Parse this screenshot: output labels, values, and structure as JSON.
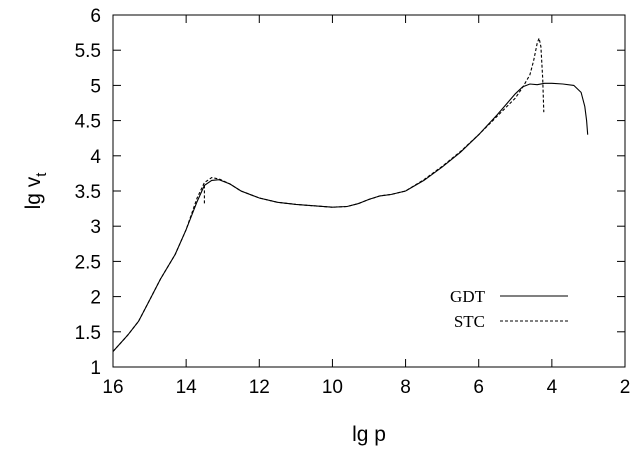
{
  "chart_data": {
    "type": "line",
    "xlabel": "lg p",
    "ylabel_main": "lg v",
    "ylabel_sub": "t",
    "xlim": [
      16,
      2
    ],
    "ylim": [
      1,
      6
    ],
    "xticks": [
      "16",
      "14",
      "12",
      "10",
      "8",
      "6",
      "4",
      "2"
    ],
    "yticks": [
      "1",
      "1.5",
      "2",
      "2.5",
      "3",
      "3.5",
      "4",
      "4.5",
      "5",
      "5.5",
      "6"
    ],
    "legend_position": "bottom-right",
    "grid": false,
    "series": [
      {
        "name": "GDT",
        "style": "solid",
        "points": [
          [
            16.0,
            1.22
          ],
          [
            15.6,
            1.45
          ],
          [
            15.3,
            1.65
          ],
          [
            15.0,
            1.95
          ],
          [
            14.7,
            2.25
          ],
          [
            14.3,
            2.6
          ],
          [
            14.0,
            2.95
          ],
          [
            13.7,
            3.35
          ],
          [
            13.5,
            3.58
          ],
          [
            13.3,
            3.65
          ],
          [
            13.1,
            3.66
          ],
          [
            12.8,
            3.6
          ],
          [
            12.5,
            3.5
          ],
          [
            12.0,
            3.4
          ],
          [
            11.5,
            3.34
          ],
          [
            11.0,
            3.31
          ],
          [
            10.5,
            3.29
          ],
          [
            10.0,
            3.27
          ],
          [
            9.6,
            3.28
          ],
          [
            9.3,
            3.32
          ],
          [
            9.0,
            3.38
          ],
          [
            8.7,
            3.43
          ],
          [
            8.4,
            3.45
          ],
          [
            8.0,
            3.5
          ],
          [
            7.5,
            3.65
          ],
          [
            7.0,
            3.84
          ],
          [
            6.5,
            4.05
          ],
          [
            6.0,
            4.3
          ],
          [
            5.5,
            4.58
          ],
          [
            5.0,
            4.88
          ],
          [
            4.8,
            4.98
          ],
          [
            4.6,
            5.02
          ],
          [
            4.4,
            5.01
          ],
          [
            4.2,
            5.03
          ],
          [
            4.0,
            5.03
          ],
          [
            3.7,
            5.02
          ],
          [
            3.4,
            5.0
          ],
          [
            3.2,
            4.9
          ],
          [
            3.1,
            4.7
          ],
          [
            3.05,
            4.5
          ],
          [
            3.02,
            4.3
          ]
        ]
      },
      {
        "name": "STC",
        "style": "dashed",
        "points": [
          [
            16.0,
            1.22
          ],
          [
            15.6,
            1.45
          ],
          [
            15.3,
            1.65
          ],
          [
            15.0,
            1.95
          ],
          [
            14.7,
            2.25
          ],
          [
            14.3,
            2.6
          ],
          [
            14.0,
            2.95
          ],
          [
            13.7,
            3.4
          ],
          [
            13.5,
            3.62
          ],
          [
            13.3,
            3.69
          ],
          [
            13.1,
            3.67
          ],
          [
            12.8,
            3.6
          ],
          [
            12.5,
            3.5
          ],
          [
            12.0,
            3.4
          ],
          [
            11.5,
            3.34
          ],
          [
            11.0,
            3.31
          ],
          [
            10.5,
            3.29
          ],
          [
            10.0,
            3.27
          ],
          [
            9.6,
            3.28
          ],
          [
            9.3,
            3.32
          ],
          [
            9.0,
            3.38
          ],
          [
            8.7,
            3.43
          ],
          [
            8.4,
            3.45
          ],
          [
            8.0,
            3.5
          ],
          [
            7.5,
            3.66
          ],
          [
            7.0,
            3.85
          ],
          [
            6.5,
            4.06
          ],
          [
            6.0,
            4.3
          ],
          [
            5.5,
            4.56
          ],
          [
            5.0,
            4.82
          ],
          [
            4.8,
            4.97
          ],
          [
            4.6,
            5.15
          ],
          [
            4.5,
            5.35
          ],
          [
            4.4,
            5.6
          ],
          [
            4.35,
            5.67
          ],
          [
            4.3,
            5.55
          ],
          [
            4.25,
            5.1
          ],
          [
            4.22,
            4.62
          ]
        ]
      },
      {
        "name": "",
        "style": "dashed",
        "points": [
          [
            13.5,
            3.58
          ],
          [
            13.5,
            3.3
          ]
        ]
      }
    ]
  }
}
